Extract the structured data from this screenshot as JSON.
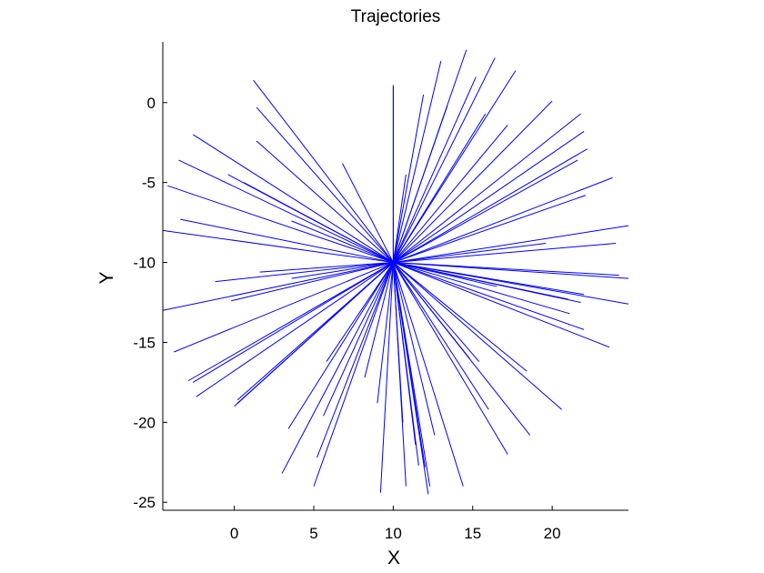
{
  "chart_data": {
    "type": "line",
    "title": "Trajectories",
    "xlabel": "X",
    "ylabel": "Y",
    "xlim": [
      -4.5,
      24.8
    ],
    "ylim": [
      -25.5,
      3.8
    ],
    "xticks": [
      0,
      5,
      10,
      15,
      20
    ],
    "yticks": [
      0,
      -5,
      -10,
      -15,
      -20,
      -25
    ],
    "grid": false,
    "line_color": "#0000ff",
    "origin": [
      10,
      -10
    ],
    "endpoints": [
      [
        10,
        1.0
      ],
      [
        10,
        1.1
      ],
      [
        14.6,
        3.3
      ],
      [
        13.0,
        2.6
      ],
      [
        16.4,
        2.8
      ],
      [
        17.7,
        2.0
      ],
      [
        15.2,
        1.6
      ],
      [
        11.9,
        0.5
      ],
      [
        20.0,
        0.1
      ],
      [
        21.8,
        -0.7
      ],
      [
        22.0,
        -1.8
      ],
      [
        13.4,
        -0.2
      ],
      [
        15.8,
        -0.7
      ],
      [
        17.2,
        -1.4
      ],
      [
        10.8,
        -4.5
      ],
      [
        22.2,
        -2.9
      ],
      [
        21.6,
        -3.6
      ],
      [
        23.8,
        -4.7
      ],
      [
        22.1,
        -5.8
      ],
      [
        24.8,
        -7.7
      ],
      [
        19.6,
        -8.8
      ],
      [
        24.0,
        -8.8
      ],
      [
        24.8,
        -11.0
      ],
      [
        24.2,
        -10.8
      ],
      [
        24.8,
        -12.6
      ],
      [
        21.0,
        -12.3
      ],
      [
        21.8,
        -12.5
      ],
      [
        22.0,
        -12.0
      ],
      [
        21.1,
        -13.2
      ],
      [
        20.4,
        -12.2
      ],
      [
        16.5,
        -11.5
      ],
      [
        23.6,
        -15.3
      ],
      [
        22.0,
        -14.2
      ],
      [
        20.6,
        -19.2
      ],
      [
        18.4,
        -16.8
      ],
      [
        18.6,
        -20.8
      ],
      [
        17.2,
        -22.0
      ],
      [
        16.0,
        -19.2
      ],
      [
        15.4,
        -16.2
      ],
      [
        14.8,
        -16.0
      ],
      [
        14.4,
        -24.0
      ],
      [
        12.6,
        -20.8
      ],
      [
        12.3,
        -24.0
      ],
      [
        12.0,
        -22.8
      ],
      [
        11.6,
        -22.7
      ],
      [
        12.2,
        -24.5
      ],
      [
        11.4,
        -21.4
      ],
      [
        10.8,
        -24.0
      ],
      [
        10.6,
        -20.0
      ],
      [
        9.2,
        -24.4
      ],
      [
        9.0,
        -18.8
      ],
      [
        8.2,
        -17.2
      ],
      [
        5.8,
        -16.2
      ],
      [
        5.6,
        -19.6
      ],
      [
        5.2,
        -22.2
      ],
      [
        5.0,
        -24.0
      ],
      [
        3.4,
        -20.4
      ],
      [
        3.0,
        -23.2
      ],
      [
        0.2,
        -18.8
      ],
      [
        0.0,
        -19.0
      ],
      [
        0.2,
        -18.6
      ],
      [
        -2.4,
        -18.4
      ],
      [
        -2.9,
        -17.4
      ],
      [
        -2.6,
        -17.5
      ],
      [
        -3.8,
        -15.6
      ],
      [
        -4.5,
        -13.0
      ],
      [
        -0.2,
        -12.4
      ],
      [
        -1.2,
        -11.2
      ],
      [
        1.6,
        -10.6
      ],
      [
        3.6,
        -11.0
      ],
      [
        -4.5,
        -8.0
      ],
      [
        -3.4,
        -7.3
      ],
      [
        -4.2,
        -5.2
      ],
      [
        -3.5,
        -3.6
      ],
      [
        -2.6,
        -2.0
      ],
      [
        -0.4,
        -4.5
      ],
      [
        0.6,
        -5.0
      ],
      [
        1.2,
        1.4
      ],
      [
        1.4,
        -0.3
      ],
      [
        1.4,
        -2.4
      ],
      [
        6.8,
        -3.8
      ],
      [
        3.6,
        -7.4
      ]
    ]
  }
}
